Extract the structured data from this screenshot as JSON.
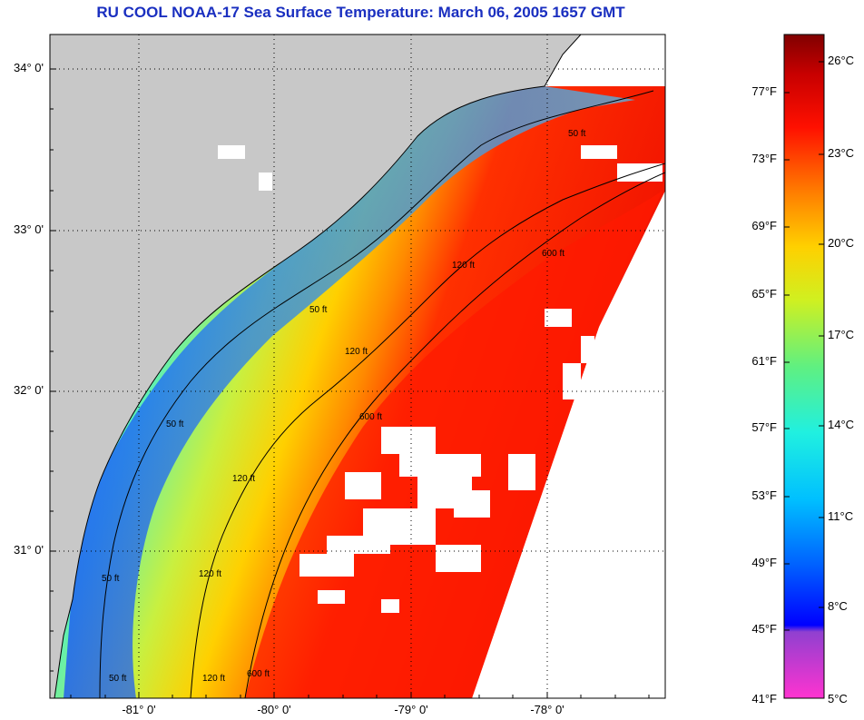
{
  "title": "RU COOL  NOAA-17  Sea Surface Temperature:  March 06, 2005 1657 GMT",
  "map": {
    "latitude_labels": [
      "34° 0'",
      "33° 0'",
      "32° 0'",
      "31° 0'"
    ],
    "longitude_labels": [
      "-81° 0'",
      "-80° 0'",
      "-79° 0'",
      "-78° 0'"
    ],
    "contour_labels": [
      "50 ft",
      "50 ft",
      "50 ft",
      "50 ft",
      "50 ft",
      "120 ft",
      "120 ft",
      "120 ft",
      "120 ft",
      "120 ft",
      "600 ft",
      "600 ft",
      "600 ft"
    ],
    "colors": {
      "land": "#c8c8c8",
      "cloud": "#ffffff",
      "grid": "#000000"
    }
  },
  "colorbar": {
    "fahrenheit_labels": [
      "77°F",
      "73°F",
      "69°F",
      "65°F",
      "61°F",
      "57°F",
      "53°F",
      "49°F",
      "45°F",
      "41°F"
    ],
    "celsius_labels": [
      "26°C",
      "23°C",
      "20°C",
      "17°C",
      "14°C",
      "11°C",
      "8°C",
      "5°C"
    ],
    "colors": [
      "#ff33d0",
      "#9040d0",
      "#0000ff",
      "#0080ff",
      "#00e8ff",
      "#30e8a0",
      "#a0f040",
      "#f0f000",
      "#ffb000",
      "#ff6000",
      "#ff0000",
      "#c00000",
      "#800000"
    ]
  }
}
